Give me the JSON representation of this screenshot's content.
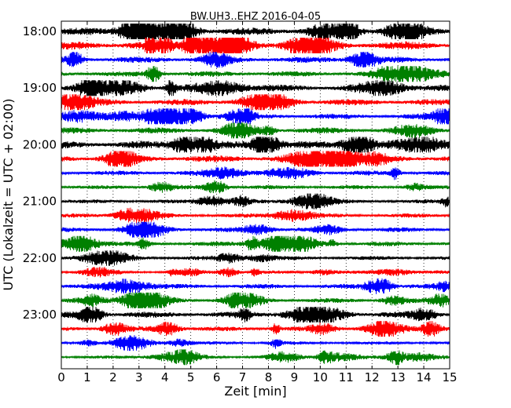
{
  "chart_data": {
    "type": "line",
    "subtype": "helicorder",
    "title": "BW.UH3..EHZ 2016-04-05",
    "xlabel": "Zeit  [min]",
    "ylabel": "UTC (Lokalzeit = UTC + 02:00)",
    "xlim": [
      0,
      15
    ],
    "x_ticks": [
      "0",
      "1",
      "2",
      "3",
      "4",
      "5",
      "6",
      "7",
      "8",
      "9",
      "10",
      "11",
      "12",
      "13",
      "14",
      "15"
    ],
    "y_ticks": [
      "18:00",
      "19:00",
      "20:00",
      "21:00",
      "22:00",
      "23:00"
    ],
    "row_interval_min": 15,
    "first_row_time": "18:00",
    "row_count": 24,
    "line_colors": [
      "#000000",
      "#ff0000",
      "#0000ff",
      "#008000"
    ],
    "grid": "vertical dotted at each minute",
    "rows": [
      {
        "start": "18:00",
        "color": "#000000",
        "amplitude": 0.55
      },
      {
        "start": "18:15",
        "color": "#ff0000",
        "amplitude": 0.6
      },
      {
        "start": "18:30",
        "color": "#0000ff",
        "amplitude": 0.45
      },
      {
        "start": "18:45",
        "color": "#008000",
        "amplitude": 0.4
      },
      {
        "start": "19:00",
        "color": "#000000",
        "amplitude": 0.5
      },
      {
        "start": "19:15",
        "color": "#ff0000",
        "amplitude": 0.45
      },
      {
        "start": "19:30",
        "color": "#0000ff",
        "amplitude": 0.4
      },
      {
        "start": "19:45",
        "color": "#008000",
        "amplitude": 0.45
      },
      {
        "start": "20:00",
        "color": "#000000",
        "amplitude": 0.55
      },
      {
        "start": "20:15",
        "color": "#ff0000",
        "amplitude": 0.5
      },
      {
        "start": "20:30",
        "color": "#0000ff",
        "amplitude": 0.35
      },
      {
        "start": "20:45",
        "color": "#008000",
        "amplitude": 0.3
      },
      {
        "start": "21:00",
        "color": "#000000",
        "amplitude": 0.28
      },
      {
        "start": "21:15",
        "color": "#ff0000",
        "amplitude": 0.3
      },
      {
        "start": "21:30",
        "color": "#0000ff",
        "amplitude": 0.35
      },
      {
        "start": "21:45",
        "color": "#008000",
        "amplitude": 0.35
      },
      {
        "start": "22:00",
        "color": "#000000",
        "amplitude": 0.3
      },
      {
        "start": "22:15",
        "color": "#ff0000",
        "amplitude": 0.25
      },
      {
        "start": "22:30",
        "color": "#0000ff",
        "amplitude": 0.35
      },
      {
        "start": "22:45",
        "color": "#008000",
        "amplitude": 0.35
      },
      {
        "start": "23:00",
        "color": "#000000",
        "amplitude": 0.45
      },
      {
        "start": "23:15",
        "color": "#ff0000",
        "amplitude": 0.35
      },
      {
        "start": "23:30",
        "color": "#0000ff",
        "amplitude": 0.25
      },
      {
        "start": "23:45",
        "color": "#008000",
        "amplitude": 0.25
      }
    ]
  }
}
